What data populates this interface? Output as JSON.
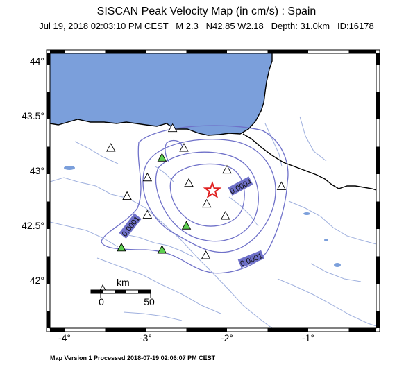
{
  "title": "SISCAN Peak Velocity Map (in cm/s) : Spain",
  "subtitle": "Jul 19, 2018 02:03:10 PM CEST   M 2.3   N42.85 W2.18   Depth: 31.0km   ID:16178",
  "footer": "Map Version 1 Processed 2018-07-19 02:06:07 PM CEST",
  "axes": {
    "x_ticks": [
      "-4°",
      "-3°",
      "-2°",
      "-1°"
    ],
    "y_ticks": [
      "44°",
      "43.5°",
      "43°",
      "42.5°",
      "42°"
    ]
  },
  "scale_bar": {
    "unit": "km",
    "start": "0",
    "end": "50"
  },
  "contour_labels": {
    "high": "0.0004",
    "left": "0.0001",
    "bottom": "0.0001"
  },
  "epicenter": {
    "lat": 42.85,
    "lon": -2.18
  },
  "stations": [
    {
      "lon": -2.67,
      "lat": 43.42,
      "color": "white"
    },
    {
      "lon": -3.43,
      "lat": 43.24,
      "color": "white"
    },
    {
      "lon": -2.53,
      "lat": 43.24,
      "color": "white"
    },
    {
      "lon": -2.8,
      "lat": 43.15,
      "color": "green"
    },
    {
      "lon": -2.0,
      "lat": 43.04,
      "color": "white"
    },
    {
      "lon": -2.98,
      "lat": 42.97,
      "color": "white"
    },
    {
      "lon": -2.47,
      "lat": 42.92,
      "color": "white"
    },
    {
      "lon": -1.33,
      "lat": 42.89,
      "color": "white"
    },
    {
      "lon": -3.23,
      "lat": 42.8,
      "color": "white"
    },
    {
      "lon": -2.25,
      "lat": 42.73,
      "color": "white"
    },
    {
      "lon": -2.02,
      "lat": 42.62,
      "color": "white"
    },
    {
      "lon": -2.98,
      "lat": 42.63,
      "color": "white"
    },
    {
      "lon": -2.5,
      "lat": 42.53,
      "color": "green"
    },
    {
      "lon": -3.3,
      "lat": 42.33,
      "color": "green"
    },
    {
      "lon": -2.8,
      "lat": 42.31,
      "color": "green"
    },
    {
      "lon": -2.26,
      "lat": 42.26,
      "color": "white"
    },
    {
      "lon": -3.53,
      "lat": 41.95,
      "color": "white"
    }
  ],
  "colors": {
    "sea": "#7b9fdb",
    "contour": "#6f71c9",
    "river": "#9fb0de",
    "green_station": "#5ccf4f",
    "epicenter": "#e02020"
  }
}
